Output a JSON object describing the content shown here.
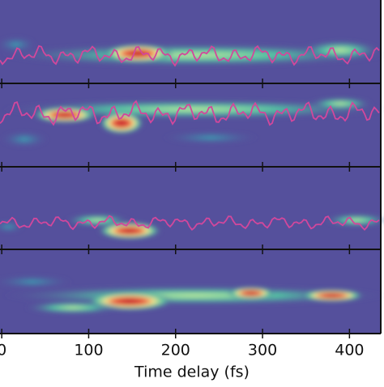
{
  "chart_data": {
    "type": "heatmap",
    "xlabel": "Time delay (fs)",
    "xlim": [
      -2,
      436
    ],
    "xticks": [
      0,
      100,
      200,
      300,
      400
    ]
  }
}
